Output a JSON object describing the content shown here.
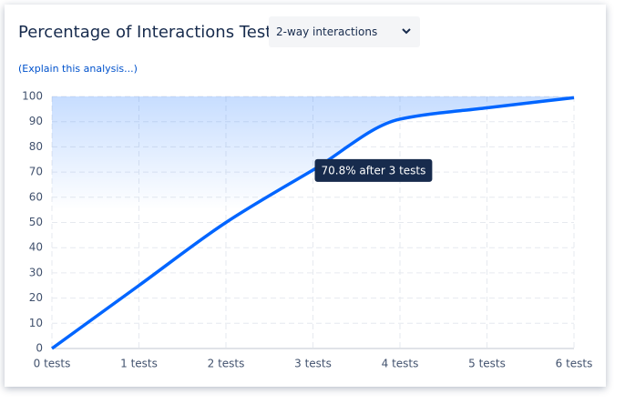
{
  "title": "Percentage of Interactions Tested",
  "select": {
    "value": "2-way interactions"
  },
  "link": "(Explain this analysis...)",
  "chart_data": {
    "type": "line",
    "x": [
      0,
      1,
      2,
      3,
      4,
      5,
      6
    ],
    "series": [
      {
        "color": "#0065ff",
        "values": [
          0,
          25,
          50,
          70.8,
          91,
          95.5,
          99.5
        ]
      }
    ],
    "xlim": [
      0,
      6
    ],
    "xticks": [
      {
        "value": 0,
        "label": "0 tests"
      },
      {
        "value": 1,
        "label": "1 tests"
      },
      {
        "value": 2,
        "label": "2 tests"
      },
      {
        "value": 3,
        "label": "3 tests"
      },
      {
        "value": 4,
        "label": "4 tests"
      },
      {
        "value": 5,
        "label": "5 tests"
      },
      {
        "value": 6,
        "label": "6 tests"
      }
    ],
    "ylim": [
      0,
      100
    ],
    "yticks": [
      0,
      10,
      20,
      30,
      40,
      50,
      60,
      70,
      80,
      90,
      100
    ],
    "grid": true,
    "annotations": [
      {
        "x": 3,
        "y": 70.8,
        "text": "70.8% after 3 tests"
      }
    ]
  }
}
